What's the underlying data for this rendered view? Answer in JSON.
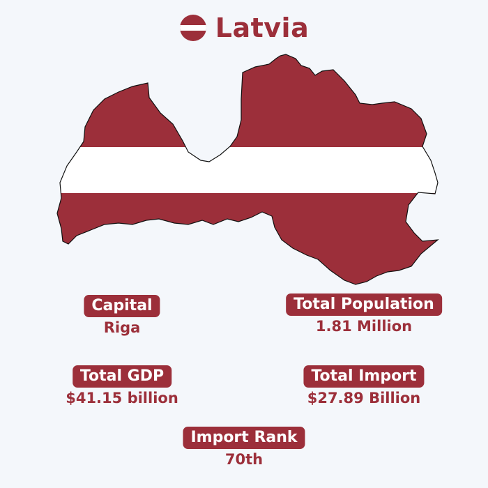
{
  "header": {
    "title": "Latvia",
    "flag_icon": "latvia-flag-circle-icon"
  },
  "map": {
    "icon": "latvia-map-flag",
    "colors": {
      "red": "#9c2f3a",
      "white": "#ffffff",
      "outline": "#111111"
    }
  },
  "stats": {
    "capital": {
      "label": "Capital",
      "value": "Riga"
    },
    "population": {
      "label": "Total Population",
      "value": "1.81 Million"
    },
    "gdp": {
      "label": "Total GDP",
      "value": "$41.15 billion"
    },
    "import": {
      "label": "Total Import",
      "value": "$27.89 Billion"
    },
    "import_rank": {
      "label": "Import Rank",
      "value": "70th"
    }
  },
  "colors": {
    "accent": "#9c2f3a",
    "background": "#f4f7fb"
  }
}
